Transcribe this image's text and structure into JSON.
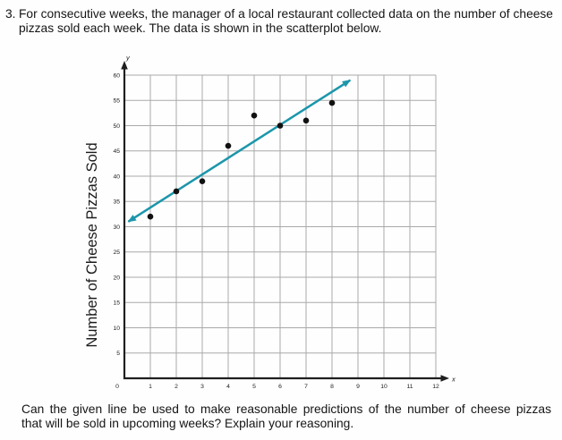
{
  "question": {
    "number": "3.",
    "lines": [
      "For consecutive weeks, the manager of a local restaurant collected data on the number of cheese",
      "pizzas sold each week. The data is shown in the scatterplot below."
    ]
  },
  "followup": {
    "lines": [
      "Can the given line be used to make reasonable predictions of the number of cheese pizzas",
      "that will be sold in upcoming weeks? Explain your reasoning."
    ]
  },
  "chart_data": {
    "type": "scatter",
    "title": "",
    "xlabel": "",
    "ylabel": "Number of Cheese Pizzas Sold",
    "x_axis_symbol": "x",
    "y_axis_symbol": "y",
    "xlim": [
      0,
      12
    ],
    "ylim": [
      0,
      60
    ],
    "x_ticks": [
      0,
      1,
      2,
      3,
      4,
      5,
      6,
      7,
      8,
      9,
      10,
      11,
      12
    ],
    "y_ticks": [
      0,
      5,
      10,
      15,
      20,
      25,
      30,
      35,
      40,
      45,
      50,
      55,
      60
    ],
    "grid": true,
    "legend": false,
    "points": [
      [
        1,
        32
      ],
      [
        2,
        37
      ],
      [
        3,
        39
      ],
      [
        4,
        46
      ],
      [
        5,
        52
      ],
      [
        6,
        50
      ],
      [
        7,
        51
      ],
      [
        8,
        54.5
      ]
    ],
    "trend_line": {
      "x1": 0.15,
      "y1": 31,
      "x2": 8.7,
      "y2": 59,
      "slope_approx": 3.3,
      "intercept_approx": 30.5,
      "description": "line of best fit with arrowheads on both ends"
    },
    "colors": {
      "trend_line": "#1b96ab",
      "point": "#111111",
      "grid": "#a9a9a9",
      "axis": "#1f1f1f"
    }
  }
}
